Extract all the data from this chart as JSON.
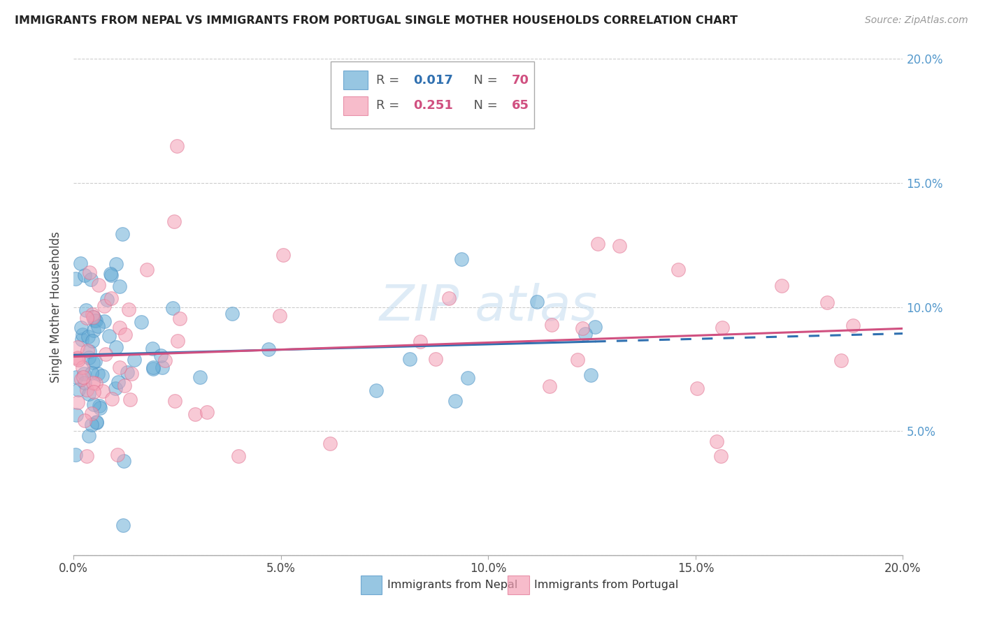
{
  "title": "IMMIGRANTS FROM NEPAL VS IMMIGRANTS FROM PORTUGAL SINGLE MOTHER HOUSEHOLDS CORRELATION CHART",
  "source": "Source: ZipAtlas.com",
  "ylabel": "Single Mother Households",
  "xlabel_nepal": "Immigrants from Nepal",
  "xlabel_portugal": "Immigrants from Portugal",
  "xmin": 0.0,
  "xmax": 0.2,
  "ymin": 0.0,
  "ymax": 0.2,
  "nepal_R": 0.017,
  "nepal_N": 70,
  "portugal_R": 0.251,
  "portugal_N": 65,
  "nepal_color": "#6baed6",
  "nepal_edge_color": "#4a90c4",
  "portugal_color": "#f4a0b5",
  "portugal_edge_color": "#e07090",
  "nepal_line_color": "#3070b0",
  "portugal_line_color": "#d05080",
  "watermark_color": "#c8dff0",
  "grid_color": "#cccccc",
  "right_tick_color": "#5599cc",
  "yticks": [
    0.0,
    0.05,
    0.1,
    0.15,
    0.2
  ],
  "ytick_labels_right": [
    "",
    "5.0%",
    "10.0%",
    "15.0%",
    "20.0%"
  ],
  "xticks": [
    0.0,
    0.05,
    0.1,
    0.15,
    0.2
  ],
  "xtick_labels": [
    "0.0%",
    "5.0%",
    "10.0%",
    "15.0%",
    "20.0%"
  ]
}
